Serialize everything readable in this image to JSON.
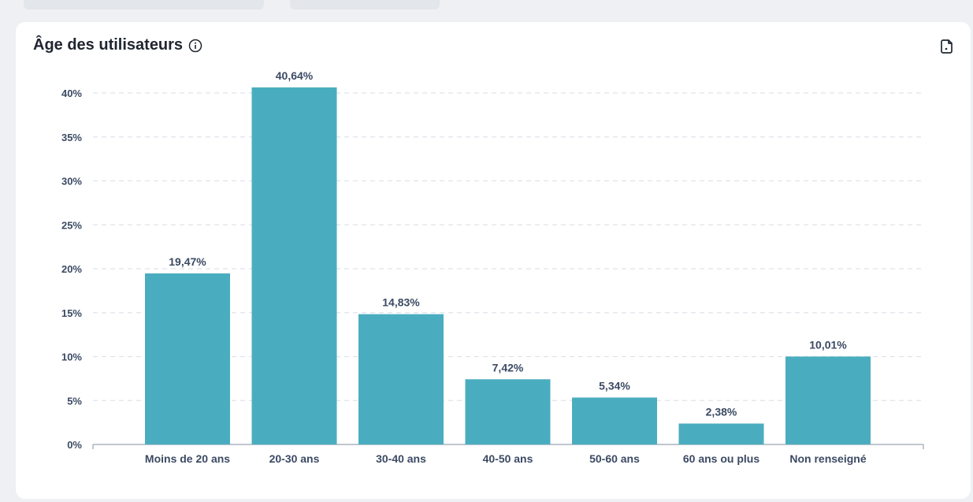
{
  "panel": {
    "title": "Âge des utilisateurs",
    "info_icon": "info-circle-icon",
    "export_icon": "export-document-icon"
  },
  "colors": {
    "bar": "#4aadbf",
    "grid": "#dfe4ea",
    "axis_text": "#3b4a63",
    "title": "#1f2530"
  },
  "chart_data": {
    "type": "bar",
    "title": "Âge des utilisateurs",
    "xlabel": "",
    "ylabel": "",
    "ylim": [
      0,
      40
    ],
    "yticks": [
      "0%",
      "5%",
      "10%",
      "15%",
      "20%",
      "25%",
      "30%",
      "35%",
      "40%"
    ],
    "categories": [
      "Moins de 20 ans",
      "20-30 ans",
      "30-40 ans",
      "40-50 ans",
      "50-60 ans",
      "60 ans ou plus",
      "Non renseigné"
    ],
    "values": [
      19.47,
      40.64,
      14.83,
      7.42,
      5.34,
      2.38,
      10.01
    ],
    "value_labels": [
      "19,47%",
      "40,64%",
      "14,83%",
      "7,42%",
      "5,34%",
      "2,38%",
      "10,01%"
    ],
    "grid": true,
    "legend": "none"
  }
}
